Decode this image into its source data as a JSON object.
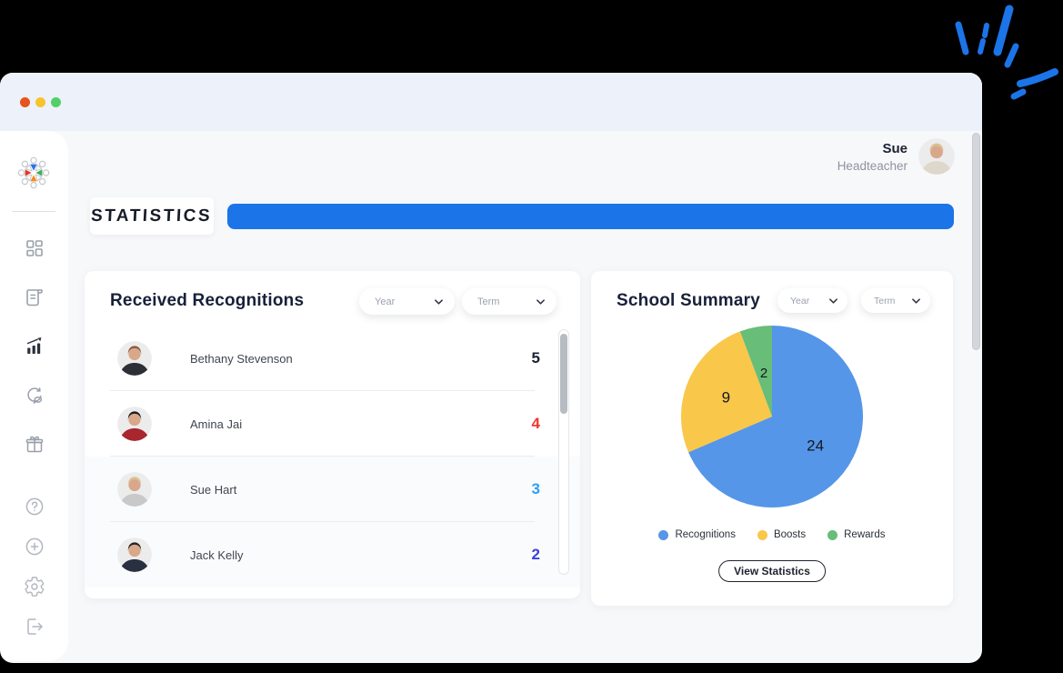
{
  "window": {
    "traffic_lights": [
      "#e8531d",
      "#f8c32b",
      "#51d06a"
    ]
  },
  "decor": {
    "spark_color": "#1b74e8"
  },
  "sidebar": {
    "logo": "community-circle-logo",
    "top_items": [
      {
        "icon": "dashboard",
        "active": false
      },
      {
        "icon": "feed",
        "active": false
      },
      {
        "icon": "statistics",
        "active": true
      },
      {
        "icon": "messages",
        "active": false
      },
      {
        "icon": "rewards",
        "active": false
      }
    ],
    "bottom_items": [
      {
        "icon": "help"
      },
      {
        "icon": "add"
      },
      {
        "icon": "settings"
      },
      {
        "icon": "logout"
      }
    ]
  },
  "header": {
    "user_name": "Sue",
    "user_role": "Headteacher",
    "avatar": {
      "hair": "#d9c08f",
      "top": "#ded7cc"
    }
  },
  "page": {
    "title": "STATISTICS",
    "accent_color": "#1b74e8"
  },
  "recognitions_panel": {
    "title": "Received Recognitions",
    "filters": [
      {
        "label": "Year"
      },
      {
        "label": "Term"
      }
    ],
    "rows": [
      {
        "name": "Bethany Stevenson",
        "count": "5",
        "count_color": "#1a2033",
        "avatar": {
          "hair": "#8a5a3b",
          "top": "#2e2e36"
        }
      },
      {
        "name": "Amina Jai",
        "count": "4",
        "count_color": "#f0372b",
        "avatar": {
          "hair": "#221c20",
          "top": "#a8262e"
        }
      },
      {
        "name": "Sue Hart",
        "count": "3",
        "count_color": "#2e9ff3",
        "avatar": {
          "hair": "#d9c08f",
          "top": "#c9c9c9"
        }
      },
      {
        "name": "Jack Kelly",
        "count": "2",
        "count_color": "#3a41d8",
        "avatar": {
          "hair": "#2a2320",
          "top": "#29303f"
        }
      }
    ]
  },
  "summary_panel": {
    "title": "School Summary",
    "filters": [
      {
        "label": "Year"
      },
      {
        "label": "Term"
      }
    ],
    "button_label": "View Statistics"
  },
  "chart_data": {
    "type": "pie",
    "labels": [
      "Recognitions",
      "Boosts",
      "Rewards"
    ],
    "values": [
      24,
      9,
      2
    ],
    "colors": [
      "#5596e8",
      "#f9c74a",
      "#68bd78"
    ],
    "start_angle_deg": 0,
    "direction": "clockwise",
    "legend_position": "bottom"
  }
}
